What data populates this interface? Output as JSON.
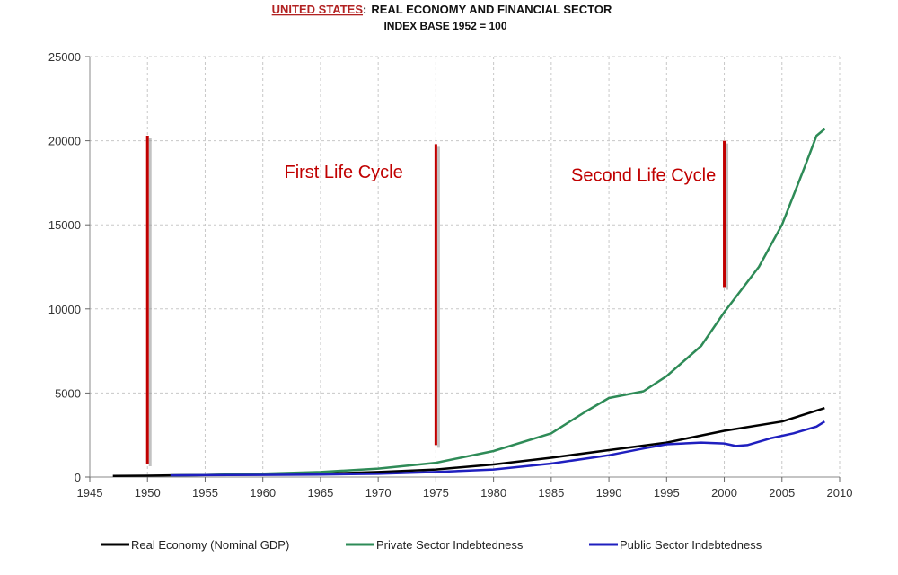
{
  "chart_data": {
    "type": "line",
    "title": {
      "country": "UNITED STATES",
      "separator": ":",
      "main": "REAL ECONOMY AND FINANCIAL SECTOR",
      "subtitle": "INDEX BASE 1952 = 100"
    },
    "xlim": [
      1945,
      2010
    ],
    "ylim": [
      0,
      25000
    ],
    "x_ticks": [
      1945,
      1950,
      1955,
      1960,
      1965,
      1970,
      1975,
      1980,
      1985,
      1990,
      1995,
      2000,
      2005,
      2010
    ],
    "y_ticks": [
      0,
      5000,
      10000,
      15000,
      20000,
      25000
    ],
    "grid": true,
    "legend_position": "bottom",
    "series": [
      {
        "name": "Real Economy (Nominal GDP)",
        "color": "#000000",
        "x": [
          1947,
          1950,
          1952,
          1955,
          1960,
          1965,
          1970,
          1975,
          1980,
          1985,
          1990,
          1995,
          2000,
          2005,
          2008.7
        ],
        "y": [
          70,
          80,
          100,
          120,
          150,
          200,
          300,
          450,
          750,
          1150,
          1600,
          2050,
          2750,
          3300,
          4100
        ]
      },
      {
        "name": "Private Sector Indebtedness",
        "color": "#2e8b57",
        "x": [
          1952,
          1955,
          1960,
          1965,
          1970,
          1975,
          1980,
          1985,
          1988,
          1990,
          1993,
          1995,
          1998,
          2000,
          2003,
          2005,
          2007,
          2008,
          2008.7
        ],
        "y": [
          100,
          120,
          200,
          300,
          500,
          850,
          1550,
          2600,
          3900,
          4700,
          5100,
          6000,
          7800,
          9800,
          12500,
          15000,
          18500,
          20300,
          20700
        ]
      },
      {
        "name": "Public Sector Indebtedness",
        "color": "#1f1fbf",
        "x": [
          1952,
          1955,
          1960,
          1965,
          1970,
          1975,
          1980,
          1985,
          1990,
          1993,
          1995,
          1998,
          2000,
          2001,
          2002,
          2004,
          2006,
          2008,
          2008.7
        ],
        "y": [
          100,
          110,
          130,
          150,
          190,
          300,
          450,
          800,
          1300,
          1700,
          1950,
          2050,
          2000,
          1850,
          1900,
          2300,
          2600,
          3000,
          3300
        ]
      }
    ],
    "markers": [
      {
        "x": 1950,
        "y_from": 800,
        "y_to": 20300,
        "color": "#c00000"
      },
      {
        "x": 1975,
        "y_from": 1900,
        "y_to": 19800,
        "color": "#c00000"
      },
      {
        "x": 2000,
        "y_from": 11300,
        "y_to": 20000,
        "color": "#c00000"
      }
    ],
    "annotations": [
      {
        "text": "First Life Cycle",
        "x": 1967,
        "y": 17800,
        "color": "#c00000"
      },
      {
        "text": "Second Life Cycle",
        "x": 1993,
        "y": 17600,
        "color": "#c00000"
      }
    ]
  }
}
